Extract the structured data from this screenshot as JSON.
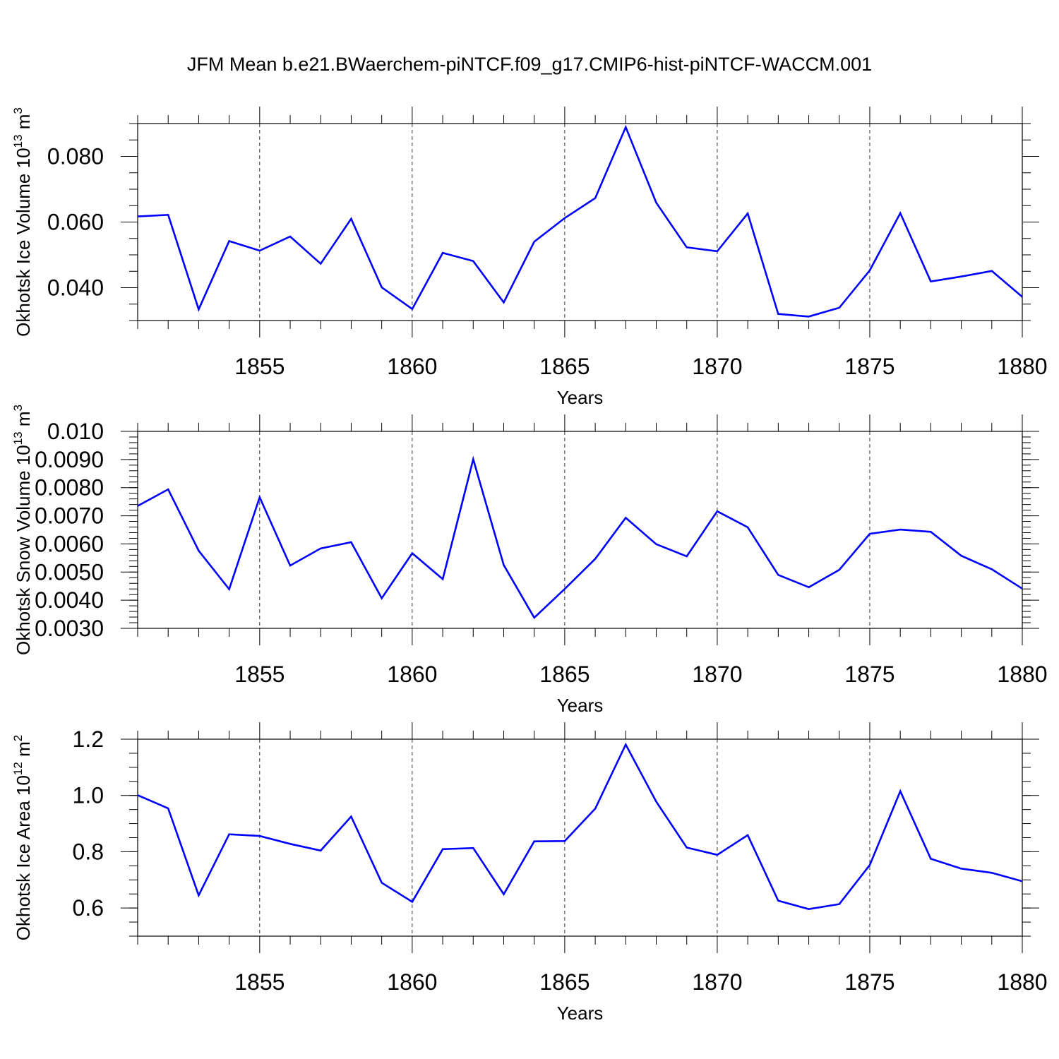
{
  "title": "JFM Mean b.e21.BWaerchem-piNTCF.f09_g17.CMIP6-hist-piNTCF-WACCM.001",
  "line_color": "#0000ff",
  "chart_data": [
    {
      "type": "line",
      "xlabel": "Years",
      "ylabel_main": "Okhotsk Ice Volume 10",
      "ylabel_exp": "13",
      "ylabel_unit": " m",
      "ylabel_unit_exp": "3",
      "xlim": [
        1851,
        1880
      ],
      "ylim": [
        0.03,
        0.09
      ],
      "grid": "vertical dashed at major ticks",
      "x_ticks": [
        1855,
        1860,
        1865,
        1870,
        1875,
        1880
      ],
      "x_tick_labels": [
        "1855",
        "1860",
        "1865",
        "1870",
        "1875",
        "1880"
      ],
      "y_ticks": [
        0.04,
        0.06,
        0.08
      ],
      "y_tick_labels": [
        "0.040",
        "0.060",
        "0.080"
      ],
      "y_minor_step": 0.005,
      "x": [
        1851,
        1852,
        1853,
        1854,
        1855,
        1856,
        1857,
        1858,
        1859,
        1860,
        1861,
        1862,
        1863,
        1864,
        1865,
        1866,
        1867,
        1868,
        1869,
        1870,
        1871,
        1872,
        1873,
        1874,
        1875,
        1876,
        1877,
        1878,
        1879,
        1880
      ],
      "values": [
        0.0617,
        0.0622,
        0.0334,
        0.0542,
        0.0513,
        0.0556,
        0.0473,
        0.061,
        0.0401,
        0.0335,
        0.0506,
        0.0481,
        0.0355,
        0.054,
        0.0612,
        0.0673,
        0.0889,
        0.0659,
        0.0523,
        0.0511,
        0.0626,
        0.032,
        0.0312,
        0.0339,
        0.0453,
        0.0627,
        0.0419,
        0.0434,
        0.0451,
        0.0372
      ]
    },
    {
      "type": "line",
      "xlabel": "Years",
      "ylabel_main": "Okhotsk Snow Volume 10",
      "ylabel_exp": "13",
      "ylabel_unit": " m",
      "ylabel_unit_exp": "3",
      "xlim": [
        1851,
        1880
      ],
      "ylim": [
        0.003,
        0.01
      ],
      "grid": "vertical dashed at major ticks",
      "x_ticks": [
        1855,
        1860,
        1865,
        1870,
        1875,
        1880
      ],
      "x_tick_labels": [
        "1855",
        "1860",
        "1865",
        "1870",
        "1875",
        "1880"
      ],
      "y_ticks": [
        0.003,
        0.004,
        0.005,
        0.006,
        0.007,
        0.008,
        0.009,
        0.01
      ],
      "y_tick_labels": [
        "0.0030",
        "0.0040",
        "0.0050",
        "0.0060",
        "0.0070",
        "0.0080",
        "0.0090",
        "0.010"
      ],
      "y_minor_step": 0.0002,
      "x": [
        1851,
        1852,
        1853,
        1854,
        1855,
        1856,
        1857,
        1858,
        1859,
        1860,
        1861,
        1862,
        1863,
        1864,
        1865,
        1866,
        1867,
        1868,
        1869,
        1870,
        1871,
        1872,
        1873,
        1874,
        1875,
        1876,
        1877,
        1878,
        1879,
        1880
      ],
      "values": [
        0.00735,
        0.00794,
        0.00576,
        0.00439,
        0.00766,
        0.00523,
        0.00584,
        0.00606,
        0.00407,
        0.00567,
        0.00475,
        0.00901,
        0.00525,
        0.00338,
        0.0044,
        0.00547,
        0.00693,
        0.00599,
        0.00556,
        0.00716,
        0.00659,
        0.0049,
        0.00446,
        0.00508,
        0.00636,
        0.00651,
        0.00643,
        0.00558,
        0.0051,
        0.00441
      ]
    },
    {
      "type": "line",
      "xlabel": "Years",
      "ylabel_main": "Okhotsk Ice Area 10",
      "ylabel_exp": "12",
      "ylabel_unit": " m",
      "ylabel_unit_exp": "2",
      "xlim": [
        1851,
        1880
      ],
      "ylim": [
        0.5,
        1.2
      ],
      "grid": "vertical dashed at major ticks",
      "x_ticks": [
        1855,
        1860,
        1865,
        1870,
        1875,
        1880
      ],
      "x_tick_labels": [
        "1855",
        "1860",
        "1865",
        "1870",
        "1875",
        "1880"
      ],
      "y_ticks": [
        0.6,
        0.8,
        1.0,
        1.2
      ],
      "y_tick_labels": [
        "0.6",
        "0.8",
        "1.0",
        "1.2"
      ],
      "y_minor_step": 0.05,
      "x": [
        1851,
        1852,
        1853,
        1854,
        1855,
        1856,
        1857,
        1858,
        1859,
        1860,
        1861,
        1862,
        1863,
        1864,
        1865,
        1866,
        1867,
        1868,
        1869,
        1870,
        1871,
        1872,
        1873,
        1874,
        1875,
        1876,
        1877,
        1878,
        1879,
        1880
      ],
      "values": [
        1.001,
        0.954,
        0.645,
        0.862,
        0.856,
        0.828,
        0.804,
        0.925,
        0.69,
        0.622,
        0.809,
        0.813,
        0.649,
        0.837,
        0.838,
        0.953,
        1.181,
        0.978,
        0.815,
        0.789,
        0.859,
        0.626,
        0.596,
        0.614,
        0.753,
        1.015,
        0.775,
        0.74,
        0.725,
        0.695
      ]
    }
  ]
}
